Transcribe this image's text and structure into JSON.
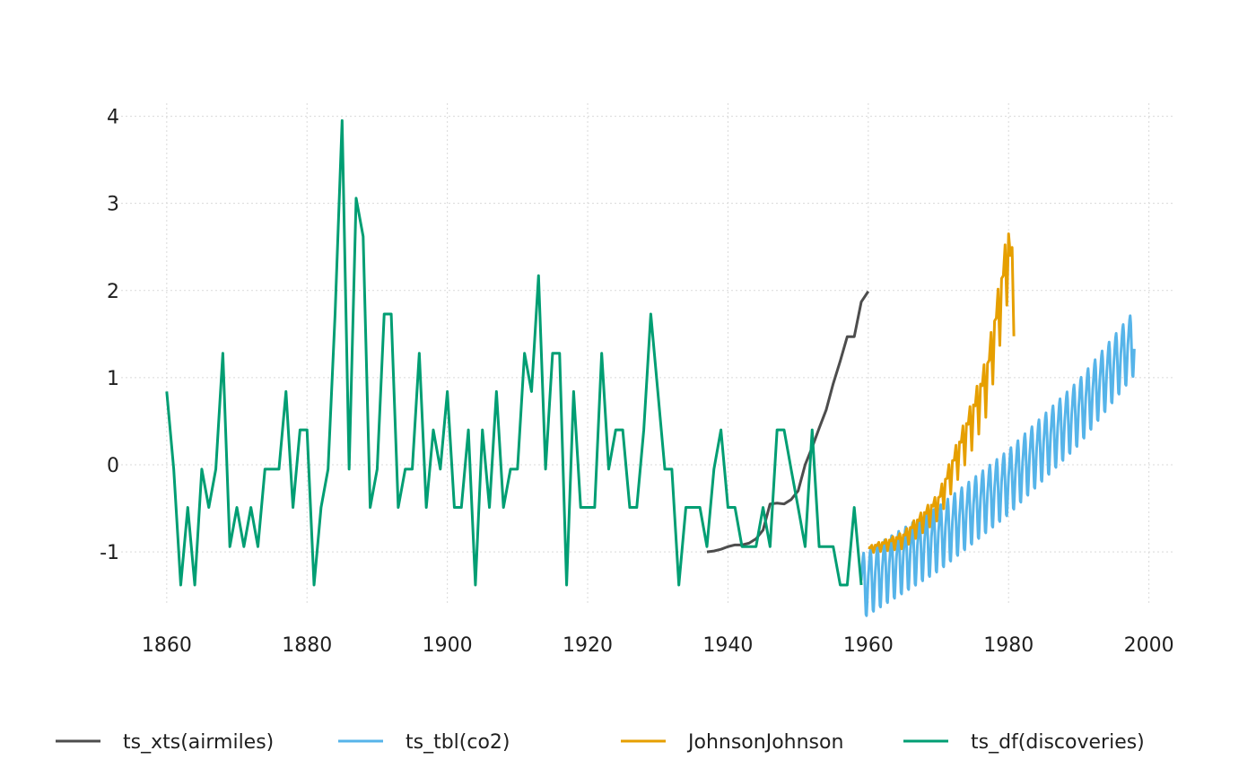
{
  "colors": {
    "airmiles": "#4d4d4d",
    "co2": "#56b4e9",
    "johnson": "#e69f00",
    "discoveries": "#009e73",
    "grid": "#d9d9d9",
    "text": "#1f1f1f"
  },
  "chart_data": {
    "type": "line",
    "title": "",
    "xlabel": "",
    "ylabel": "",
    "xlim": [
      1853.5,
      2003.5
    ],
    "ylim": [
      -1.72,
      4.15
    ],
    "grid": true,
    "legend_position": "bottom",
    "x_ticks": [
      1860,
      1880,
      1900,
      1920,
      1940,
      1960,
      1980,
      2000
    ],
    "x_tick_labels": [
      "1860",
      "1880",
      "1900",
      "1920",
      "1940",
      "1960",
      "1980",
      "2000"
    ],
    "y_ticks": [
      4,
      3,
      2,
      1,
      0,
      -1
    ],
    "y_tick_labels": [
      "4",
      "3",
      "2",
      "1",
      "0",
      "-1"
    ],
    "series": [
      {
        "name": "ts_xts(airmiles)",
        "color_key": "airmiles",
        "x": [
          1937,
          1938,
          1939,
          1940,
          1941,
          1942,
          1943,
          1944,
          1945,
          1946,
          1947,
          1948,
          1949,
          1950,
          1951,
          1952,
          1953,
          1954,
          1955,
          1956,
          1957,
          1958,
          1959,
          1960
        ],
        "y": [
          -1.0,
          -0.99,
          -0.97,
          -0.94,
          -0.92,
          -0.92,
          -0.9,
          -0.85,
          -0.75,
          -0.45,
          -0.44,
          -0.45,
          -0.4,
          -0.3,
          0.0,
          0.2,
          0.42,
          0.63,
          0.93,
          1.19,
          1.47,
          1.47,
          1.87,
          1.99
        ]
      },
      {
        "name": "ts_tbl(co2)",
        "color_key": "co2",
        "pattern": "seasonal",
        "x_start": 1959,
        "x_end": 1997.917,
        "step": 0.08333,
        "trend": [
          [
            1959,
            -1.45
          ],
          [
            1970,
            -0.9
          ],
          [
            1980,
            -0.25
          ],
          [
            1990,
            0.55
          ],
          [
            1997.917,
            1.35
          ]
        ],
        "seasonal": [
          0.12,
          0.2,
          0.3,
          0.38,
          0.42,
          0.32,
          0.1,
          -0.12,
          -0.3,
          -0.32,
          -0.18,
          -0.02
        ]
      },
      {
        "name": "JohnsonJohnson",
        "color_key": "johnson",
        "pattern": "quarterly",
        "x_start": 1960,
        "x_end": 1980.75,
        "step": 0.25,
        "trend": [
          [
            1960,
            -0.97
          ],
          [
            1965,
            -0.85
          ],
          [
            1970,
            -0.45
          ],
          [
            1973,
            0.15
          ],
          [
            1975,
            0.55
          ],
          [
            1977,
            1.0
          ],
          [
            1979,
            1.95
          ],
          [
            1980,
            2.45
          ],
          [
            1980.75,
            2.0
          ]
        ],
        "seasonal": [
          0.06,
          0.03,
          0.1,
          -0.15
        ],
        "seasonal_scale": [
          [
            1960,
            0.3
          ],
          [
            1970,
            1.2
          ],
          [
            1976,
            2.5
          ],
          [
            1980.75,
            3.5
          ]
        ]
      },
      {
        "name": "ts_df(discoveries)",
        "color_key": "discoveries",
        "x_start": 1860,
        "y": [
          0.84,
          -0.05,
          -1.38,
          -0.49,
          -1.38,
          -0.05,
          -0.49,
          -0.05,
          1.28,
          -0.94,
          -0.49,
          -0.94,
          -0.49,
          -0.94,
          -0.05,
          -0.05,
          -0.05,
          0.84,
          -0.49,
          0.4,
          0.4,
          -1.38,
          -0.49,
          -0.05,
          1.73,
          3.95,
          -0.05,
          3.06,
          2.62,
          -0.49,
          -0.05,
          1.73,
          1.73,
          -0.49,
          -0.05,
          -0.05,
          1.28,
          -0.49,
          0.4,
          -0.05,
          0.84,
          -0.49,
          -0.49,
          0.4,
          -1.38,
          0.4,
          -0.49,
          0.84,
          -0.49,
          -0.05,
          -0.05,
          1.28,
          0.84,
          2.17,
          -0.05,
          1.28,
          1.28,
          -1.38,
          0.84,
          -0.49,
          -0.49,
          -0.49,
          1.28,
          -0.05,
          0.4,
          0.4,
          -0.49,
          -0.49,
          0.4,
          1.73,
          0.84,
          -0.05,
          -0.05,
          -1.38,
          -0.49,
          -0.49,
          -0.49,
          -0.94,
          -0.05,
          0.4,
          -0.49,
          -0.49,
          -0.94,
          -0.94,
          -0.94,
          -0.49,
          -0.94,
          0.4,
          0.4,
          -0.05,
          -0.49,
          -0.94,
          0.4,
          -0.94,
          -0.94,
          -0.94,
          -1.38,
          -1.38,
          -0.49,
          -1.38
        ]
      }
    ]
  }
}
